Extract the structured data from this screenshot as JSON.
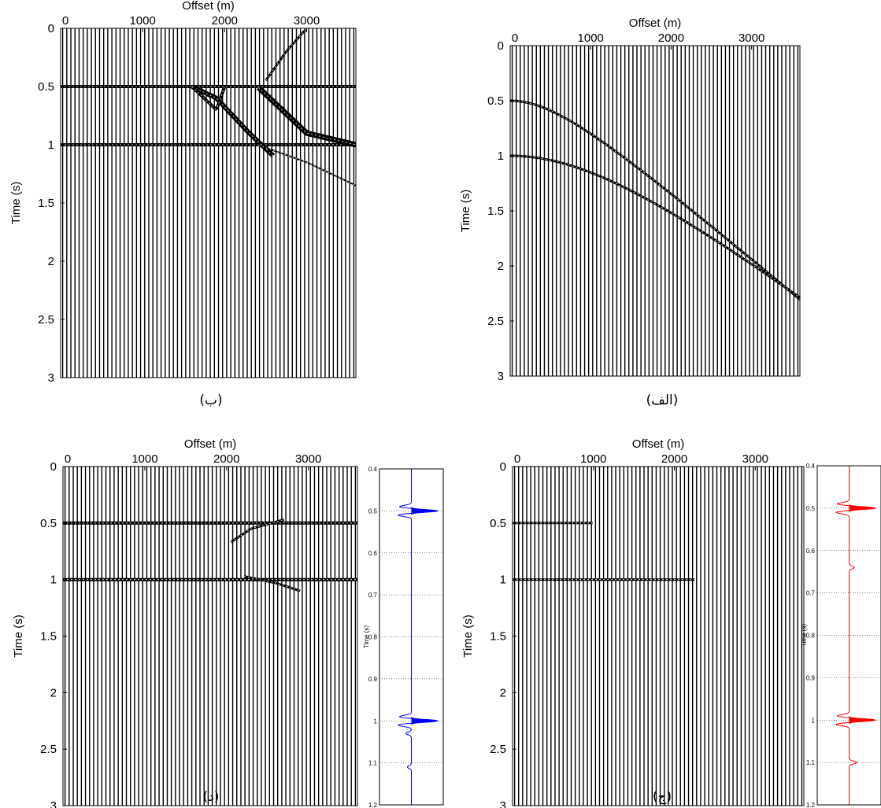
{
  "figure": {
    "captions": [
      "(ب)",
      "(الف)",
      "(د)",
      "(ج)"
    ]
  },
  "chart_data": [
    {
      "id": "panel-b",
      "type": "seismic-gather",
      "caption": "(ب)",
      "xlabel": "Offset (m)",
      "ylabel": "Time (s)",
      "xlim": [
        0,
        3600
      ],
      "ylim": [
        0,
        3
      ],
      "y_inverted": true,
      "xticks": [
        0,
        1000,
        2000,
        3000
      ],
      "xtick_labels": [
        "0",
        "1000",
        "2000",
        "3000"
      ],
      "yticks": [
        0,
        0.5,
        1,
        1.5,
        2,
        2.5,
        3
      ],
      "ytick_labels": [
        "0",
        "0.5",
        "1",
        "1.5",
        "2",
        "2.5",
        "3"
      ],
      "trace_count": 72,
      "trace_color": "#000000",
      "events": [
        {
          "name": "flat-0.5",
          "x": [
            0,
            3600
          ],
          "t": [
            0.5,
            0.5
          ],
          "width": 4
        },
        {
          "name": "flat-1.0",
          "x": [
            0,
            3600
          ],
          "t": [
            1.0,
            1.0
          ],
          "width": 4
        },
        {
          "name": "dip-a",
          "x": [
            1600,
            1900,
            2300,
            2600
          ],
          "t": [
            0.5,
            0.6,
            0.9,
            1.1
          ],
          "width": 6
        },
        {
          "name": "dip-b",
          "x": [
            2400,
            2700,
            3000,
            3600
          ],
          "t": [
            0.5,
            0.7,
            0.9,
            1.0
          ],
          "width": 7
        },
        {
          "name": "dip-c",
          "x": [
            2400,
            3000,
            3600
          ],
          "t": [
            1.0,
            1.15,
            1.35
          ],
          "width": 2
        },
        {
          "name": "diffraction-top",
          "x": [
            2500,
            2750,
            3000
          ],
          "t": [
            0.45,
            0.2,
            0.0
          ],
          "width": 3
        },
        {
          "name": "wedge",
          "x": [
            1600,
            1900,
            2000
          ],
          "t": [
            0.5,
            0.7,
            0.5
          ],
          "width": 4
        }
      ]
    },
    {
      "id": "panel-alef",
      "type": "seismic-gather",
      "caption": "(الف)",
      "xlabel": "Offset (m)",
      "ylabel": "Time (s)",
      "xlim": [
        0,
        3600
      ],
      "ylim": [
        0,
        3
      ],
      "y_inverted": true,
      "xticks": [
        0,
        1000,
        2000,
        3000
      ],
      "xtick_labels": [
        "0",
        "1000",
        "2000",
        "3000"
      ],
      "yticks": [
        0,
        0.5,
        1,
        1.5,
        2,
        2.5,
        3
      ],
      "ytick_labels": [
        "0",
        "0.5",
        "1",
        "1.5",
        "2",
        "2.5",
        "3"
      ],
      "trace_count": 72,
      "trace_color": "#000000",
      "events": [
        {
          "name": "hyperbola-0.5",
          "t0": 0.5,
          "velocity": 1600,
          "width": 3
        },
        {
          "name": "hyperbola-1.0",
          "t0": 1.0,
          "velocity": 1750,
          "width": 3
        }
      ]
    },
    {
      "id": "panel-dal",
      "type": "seismic-gather",
      "caption": "(د)",
      "xlabel": "Offset (m)",
      "ylabel": "Time (s)",
      "xlim": [
        0,
        3600
      ],
      "ylim": [
        0,
        3
      ],
      "y_inverted": true,
      "xticks": [
        0,
        1000,
        2000,
        3000
      ],
      "xtick_labels": [
        "0",
        "1000",
        "2000",
        "3000"
      ],
      "yticks": [
        0,
        0.5,
        1,
        1.5,
        2,
        2.5,
        3
      ],
      "ytick_labels": [
        "0",
        "0.5",
        "1",
        "1.5",
        "2",
        "2.5",
        "3"
      ],
      "trace_count": 72,
      "trace_color": "#000000",
      "events": [
        {
          "name": "flat-0.5",
          "x": [
            0,
            3600
          ],
          "t": [
            0.5,
            0.5
          ],
          "width": 4
        },
        {
          "name": "flat-1.0",
          "x": [
            0,
            3600
          ],
          "t": [
            1.0,
            1.0
          ],
          "width": 4
        },
        {
          "name": "residual-a",
          "x": [
            2050,
            2300,
            2700
          ],
          "t": [
            0.67,
            0.55,
            0.47
          ],
          "width": 3
        },
        {
          "name": "residual-b",
          "x": [
            2200,
            2600,
            2900
          ],
          "t": [
            0.97,
            1.03,
            1.1
          ],
          "width": 3
        }
      ]
    },
    {
      "id": "panel-jim",
      "type": "seismic-gather",
      "caption": "(ج)",
      "xlabel": "Offset (m)",
      "ylabel": "Time (s)",
      "xlim": [
        0,
        3600
      ],
      "ylim": [
        0,
        3
      ],
      "y_inverted": true,
      "xticks": [
        0,
        1000,
        2000,
        3000
      ],
      "xtick_labels": [
        "0",
        "1000",
        "2000",
        "3000"
      ],
      "yticks": [
        0,
        0.5,
        1,
        1.5,
        2,
        2.5,
        3
      ],
      "ytick_labels": [
        "0",
        "0.5",
        "1",
        "1.5",
        "2",
        "2.5",
        "3"
      ],
      "trace_count": 72,
      "trace_color": "#000000",
      "events": [
        {
          "name": "flat-0.5-short",
          "x": [
            0,
            1000
          ],
          "t": [
            0.5,
            0.5
          ],
          "width": 3
        },
        {
          "name": "flat-1.0-short",
          "x": [
            0,
            2250
          ],
          "t": [
            1.0,
            1.0
          ],
          "width": 3
        }
      ]
    },
    {
      "id": "trace-blue",
      "type": "line",
      "ylabel": "Time (s)",
      "ylim": [
        0.4,
        1.2
      ],
      "y_inverted": true,
      "yticks": [
        0.4,
        0.5,
        0.6,
        0.7,
        0.8,
        0.9,
        1.0,
        1.1,
        1.2
      ],
      "ytick_labels": [
        "0.4",
        "0.5",
        "0.6",
        "0.7",
        "0.8",
        "0.9",
        "1",
        "1.1",
        "1.2"
      ],
      "grid": true,
      "color": "#0000ff",
      "wiggles": [
        {
          "t": 0.49,
          "amp": -0.45
        },
        {
          "t": 0.5,
          "amp": 1.0
        },
        {
          "t": 0.51,
          "amp": -0.5
        },
        {
          "t": 0.99,
          "amp": -0.45
        },
        {
          "t": 1.0,
          "amp": 1.0
        },
        {
          "t": 1.01,
          "amp": -0.5
        },
        {
          "t": 1.03,
          "amp": -0.2
        },
        {
          "t": 1.11,
          "amp": -0.15
        }
      ]
    },
    {
      "id": "trace-red",
      "type": "line",
      "ylabel": "Time (s)",
      "ylim": [
        0.4,
        1.2
      ],
      "y_inverted": true,
      "yticks": [
        0.4,
        0.5,
        0.6,
        0.7,
        0.8,
        0.9,
        1.0,
        1.1,
        1.2
      ],
      "ytick_labels": [
        "0.4",
        "0.5",
        "0.6",
        "0.7",
        "0.8",
        "0.9",
        "1",
        "1.1",
        "1.2"
      ],
      "grid": true,
      "color": "#ff0000",
      "wiggles": [
        {
          "t": 0.49,
          "amp": -0.45
        },
        {
          "t": 0.5,
          "amp": 1.0
        },
        {
          "t": 0.51,
          "amp": -0.5
        },
        {
          "t": 0.64,
          "amp": 0.2
        },
        {
          "t": 0.99,
          "amp": -0.45
        },
        {
          "t": 1.0,
          "amp": 1.0
        },
        {
          "t": 1.01,
          "amp": -0.5
        },
        {
          "t": 1.1,
          "amp": 0.3
        }
      ]
    }
  ]
}
